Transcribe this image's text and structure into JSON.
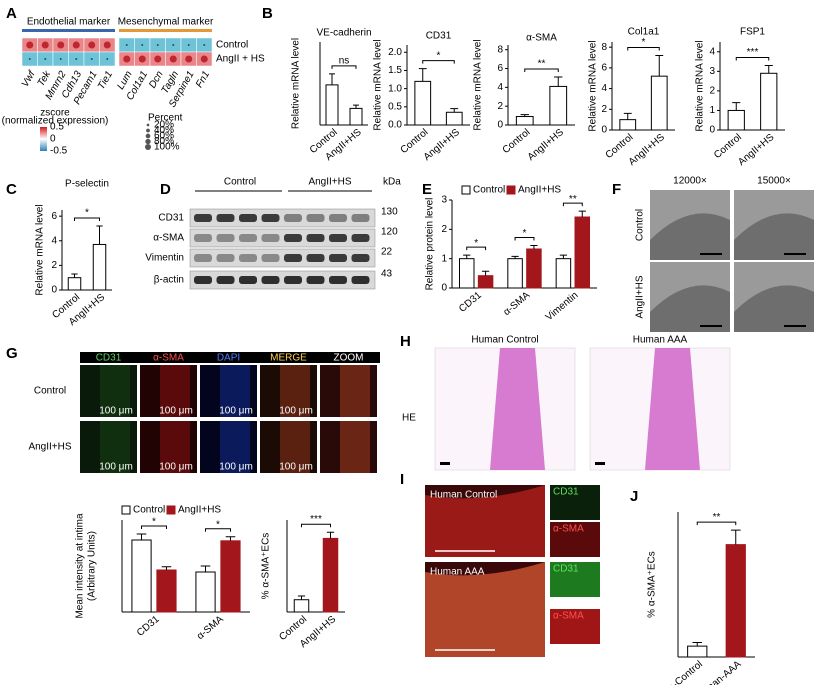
{
  "panel_labels": [
    "A",
    "B",
    "C",
    "D",
    "E",
    "F",
    "G",
    "H",
    "I",
    "J"
  ],
  "heatmap": {
    "group_labels": [
      "Endothelial marker",
      "Mesenchymal marker"
    ],
    "rows": [
      "Control",
      "AngII + HS"
    ],
    "columns": [
      "Vwf",
      "Tek",
      "Mmrn2",
      "Cdh13",
      "Pecam1",
      "Tie1",
      "Lum",
      "Col1a1",
      "Dcn",
      "Tagln",
      "Serpine1",
      "Fn1"
    ],
    "values": [
      [
        0.5,
        0.5,
        0.5,
        0.5,
        0.5,
        0.5,
        -0.5,
        -0.5,
        -0.5,
        -0.5,
        -0.5,
        -0.5
      ],
      [
        -0.5,
        -0.5,
        -0.5,
        -0.5,
        -0.5,
        -0.5,
        0.5,
        0.5,
        0.5,
        0.5,
        0.5,
        0.5
      ]
    ],
    "colorbar_title": [
      "zscore",
      "(normalized expression)"
    ],
    "colorbar_ticks": [
      0.5,
      0,
      -0.5
    ],
    "size_title": "Percent",
    "size_ticks": [
      {
        "value": 20,
        "label": "20%"
      },
      {
        "value": 40,
        "label": "40%"
      },
      {
        "value": 60,
        "label": "60%"
      },
      {
        "value": 80,
        "label": "80%"
      },
      {
        "value": 100,
        "label": "100%"
      }
    ]
  },
  "blot": {
    "groups": [
      "Control",
      "AngII+HS"
    ],
    "rows": [
      "CD31",
      "α-SMA",
      "Vimentin",
      "β-actin"
    ],
    "unit": "kDa",
    "sizes": [
      130,
      120,
      22,
      43
    ]
  },
  "em": {
    "columns": [
      "12000×",
      "15000×"
    ],
    "rows": [
      "Control",
      "AngII+HS"
    ]
  },
  "if": {
    "channels": [
      "CD31",
      "α-SMA",
      "DAPI",
      "MERGE",
      "ZOOM"
    ],
    "rows": [
      "Control",
      "AngII+HS"
    ],
    "scale": "100 μm"
  },
  "he": {
    "titles": [
      "Human Control",
      "Human AAA"
    ],
    "stain": "HE"
  },
  "ihc": {
    "rows": [
      "Human Control",
      "Human AAA"
    ],
    "channels": [
      "CD31",
      "α-SMA"
    ]
  },
  "chart_data": [
    {
      "type": "bar",
      "title": "VE-cadherin",
      "ylabel": "Relative  mRNA level",
      "categories": [
        "Control",
        "AngII+HS"
      ],
      "values": [
        1.45,
        0.6
      ],
      "errors": [
        0.4,
        0.12
      ],
      "colors": [
        "#ffffff",
        "#ffffff"
      ],
      "ylim": [
        0,
        3
      ],
      "significance": "ns"
    },
    {
      "type": "bar",
      "title": "CD31",
      "ylabel": "Relative  mRNA level",
      "categories": [
        "Control",
        "AngII+HS"
      ],
      "values": [
        1.2,
        0.35
      ],
      "errors": [
        0.35,
        0.1
      ],
      "colors": [
        "#ffffff",
        "#ffffff"
      ],
      "ylim": [
        0,
        2.2
      ],
      "yticks": [
        {
          "value": 0,
          "label": "0.0"
        },
        {
          "value": 0.5,
          "label": "0.5"
        },
        {
          "value": 1,
          "label": "1.0"
        },
        {
          "value": 1.5,
          "label": "1.5"
        },
        {
          "value": 2,
          "label": "2.0"
        }
      ],
      "significance": "*"
    },
    {
      "type": "bar",
      "title": "α-SMA",
      "ylabel": "Relative  mRNA level",
      "categories": [
        "Control",
        "AngII+HS"
      ],
      "values": [
        0.9,
        4.1
      ],
      "errors": [
        0.2,
        1.0
      ],
      "colors": [
        "#ffffff",
        "#ffffff"
      ],
      "ylim": [
        0,
        8.5
      ],
      "yticks": [
        0,
        2,
        4,
        6,
        8
      ],
      "significance": "**"
    },
    {
      "type": "bar",
      "title": "Col1a1",
      "ylabel": "Relative  mRNA level",
      "categories": [
        "Control",
        "AngII+HS"
      ],
      "values": [
        1.0,
        5.2
      ],
      "errors": [
        0.6,
        2.0
      ],
      "colors": [
        "#ffffff",
        "#ffffff"
      ],
      "ylim": [
        0,
        8.5
      ],
      "yticks": [
        0,
        2,
        4,
        6,
        8
      ],
      "significance": "*"
    },
    {
      "type": "bar",
      "title": "FSP1",
      "ylabel": "Relative  mRNA level",
      "categories": [
        "Control",
        "AngII+HS"
      ],
      "values": [
        1.0,
        2.9
      ],
      "errors": [
        0.4,
        0.4
      ],
      "colors": [
        "#ffffff",
        "#ffffff"
      ],
      "ylim": [
        0,
        4.5
      ],
      "yticks": [
        0,
        1,
        2,
        3,
        4
      ],
      "significance": "***"
    },
    {
      "type": "bar",
      "title": "P-selectin",
      "ylabel": "Relative  mRNA level",
      "categories": [
        "Control",
        "AngII+HS"
      ],
      "values": [
        1.0,
        3.7
      ],
      "errors": [
        0.3,
        1.5
      ],
      "colors": [
        "#ffffff",
        "#ffffff"
      ],
      "ylim": [
        0,
        6.5
      ],
      "yticks": [
        0,
        2,
        4,
        6
      ],
      "significance": "*"
    },
    {
      "type": "bar",
      "ylabel": "Relative protein level",
      "categories": [
        "CD31",
        "α-SMA",
        "Vimentin"
      ],
      "series": [
        {
          "name": "Control",
          "color": "#ffffff",
          "values": [
            1.0,
            1.0,
            1.0
          ],
          "errors": [
            0.12,
            0.08,
            0.12
          ]
        },
        {
          "name": "AngII+HS",
          "color": "#a3161b",
          "values": [
            0.42,
            1.33,
            2.42
          ],
          "errors": [
            0.15,
            0.12,
            0.2
          ]
        }
      ],
      "ylim": [
        0,
        3
      ],
      "yticks": [
        0,
        1,
        2,
        3
      ],
      "significance": [
        "*",
        "*",
        "**"
      ]
    },
    {
      "type": "bar",
      "ylabel": [
        "Mean intensity at intima",
        "(Arbitrary Units)"
      ],
      "categories": [
        "CD31",
        "α-SMA"
      ],
      "series": [
        {
          "name": "Control",
          "color": "#ffffff",
          "values": [
            180,
            100
          ],
          "errors": [
            15,
            15
          ]
        },
        {
          "name": "AngII+HS",
          "color": "#a3161b",
          "values": [
            105,
            178
          ],
          "errors": [
            8,
            10
          ]
        }
      ],
      "ylim": [
        0,
        230
      ],
      "significance": [
        "*",
        "*"
      ]
    },
    {
      "type": "bar",
      "ylabel": "% α-SMA⁺ECs",
      "categories": [
        "Control",
        "AngII+HS"
      ],
      "values": [
        10,
        60
      ],
      "errors": [
        3,
        5
      ],
      "colors": [
        "#ffffff",
        "#a3161b"
      ],
      "ylim": [
        0,
        75
      ],
      "significance": "***"
    },
    {
      "type": "bar",
      "ylabel": "% α-SMA⁺ECs",
      "categories": [
        "Human-Control",
        "Human-AAA"
      ],
      "values": [
        6,
        62
      ],
      "errors": [
        2,
        8
      ],
      "colors": [
        "#ffffff",
        "#a3161b"
      ],
      "ylim": [
        0,
        80
      ],
      "significance": "**"
    }
  ]
}
